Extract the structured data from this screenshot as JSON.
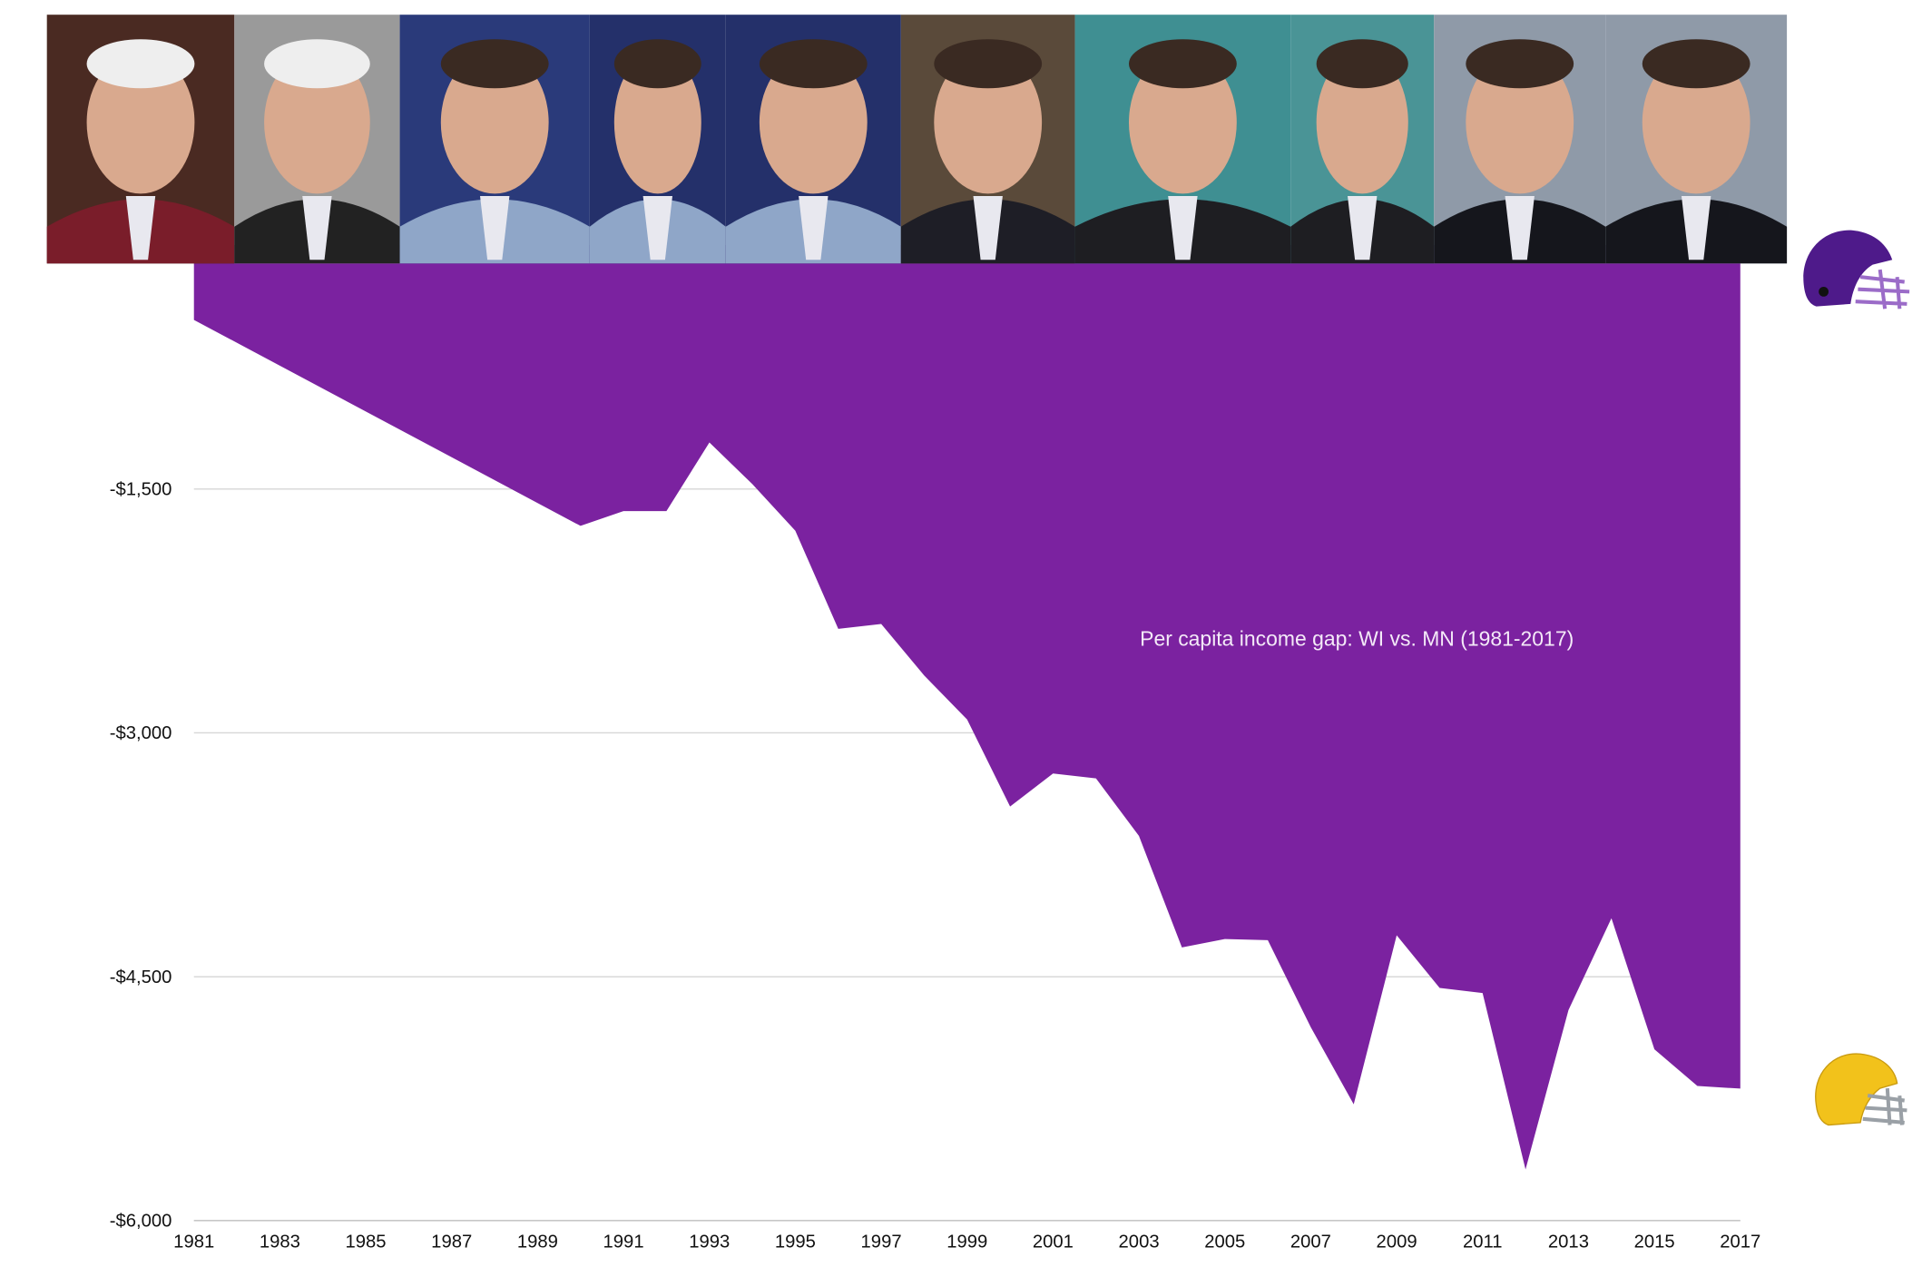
{
  "chart_data": {
    "type": "area",
    "title": "",
    "annotation": "Per capita income gap: WI vs. MN (1981-2017)",
    "xlabel": "",
    "ylabel": "",
    "x": [
      1981,
      1990,
      1991,
      1992,
      1993,
      1994,
      1995,
      1996,
      1997,
      1998,
      1999,
      2000,
      2001,
      2002,
      2003,
      2004,
      2005,
      2006,
      2007,
      2008,
      2009,
      2010,
      2011,
      2012,
      2013,
      2014,
      2015,
      2016,
      2017
    ],
    "values": [
      -460,
      -1727,
      -1636,
      -1636,
      -1214,
      -1470,
      -1757,
      -2360,
      -2330,
      -2647,
      -2918,
      -3453,
      -3250,
      -3280,
      -3634,
      -4320,
      -4268,
      -4275,
      -4810,
      -5285,
      -4245,
      -4569,
      -4600,
      -5685,
      -4705,
      -4140,
      -4946,
      -5172,
      -5188
    ],
    "xlim": [
      1981,
      2017
    ],
    "ylim": [
      -6000,
      0
    ],
    "x_tick_labels": [
      "1981",
      "1983",
      "1985",
      "1987",
      "1989",
      "1991",
      "1993",
      "1995",
      "1997",
      "1999",
      "2001",
      "2003",
      "2005",
      "2007",
      "2009",
      "2011",
      "2013",
      "2015",
      "2017"
    ],
    "y_ticks": [
      -1500,
      -3000,
      -4500,
      -6000
    ],
    "y_tick_labels": [
      "-$1,500",
      "-$3,000",
      "-$4,500",
      "-$6,000"
    ],
    "grid": "horizontal",
    "legend": "none",
    "fill_color": "#7B22A0"
  },
  "decorations": {
    "portraits": 10,
    "helmet_top_color": "#4E1A8A",
    "helmet_bottom_color": "#F2C21B"
  }
}
